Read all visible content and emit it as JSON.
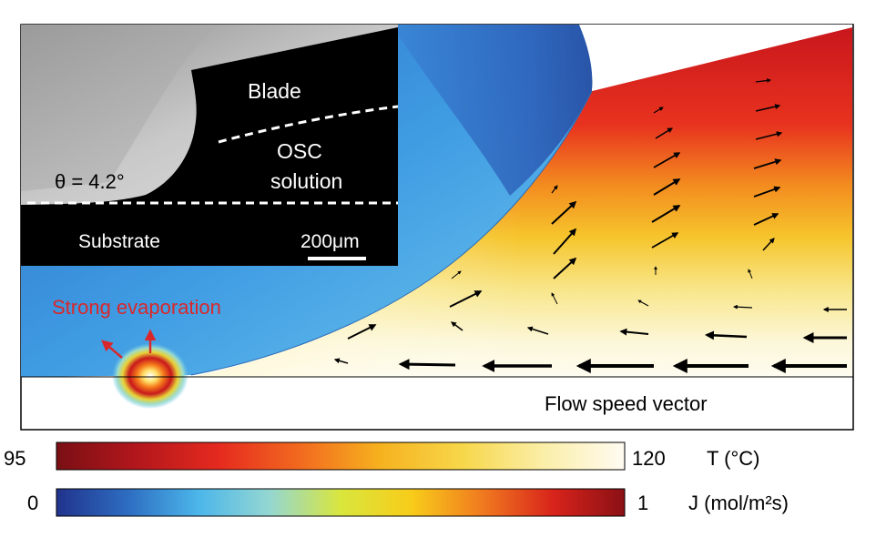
{
  "inset": {
    "blade": "Blade",
    "osc_line1": "OSC",
    "osc_line2": "solution",
    "angle_label": "θ = 4.2°",
    "substrate": "Substrate",
    "scale_bar": "200μm"
  },
  "main": {
    "evaporation_label": "Strong evaporation",
    "flow_label": "Flow speed vector"
  },
  "colorbars": {
    "temperature": {
      "min": "95",
      "max": "120",
      "label": "T (°C)",
      "colors": [
        "#7a0f14",
        "#b3171c",
        "#e52a1f",
        "#f26a1f",
        "#f6b21f",
        "#f7d74a",
        "#fbeea8",
        "#fffbf2"
      ]
    },
    "flux": {
      "min": "0",
      "max": "1",
      "label": "J (mol/m²s)",
      "colors": [
        "#21338c",
        "#2d6dc1",
        "#4cb6ea",
        "#94d7d2",
        "#d9e63d",
        "#f8cc1a",
        "#f07a1f",
        "#d8231b",
        "#8a1015"
      ]
    }
  },
  "colors": {
    "flux_field": "#3a8fd8",
    "temp_hot": "#d8181c",
    "temp_cool": "#fdfbe9",
    "evaporation_text": "#d8282b",
    "arrow": "#000000"
  }
}
